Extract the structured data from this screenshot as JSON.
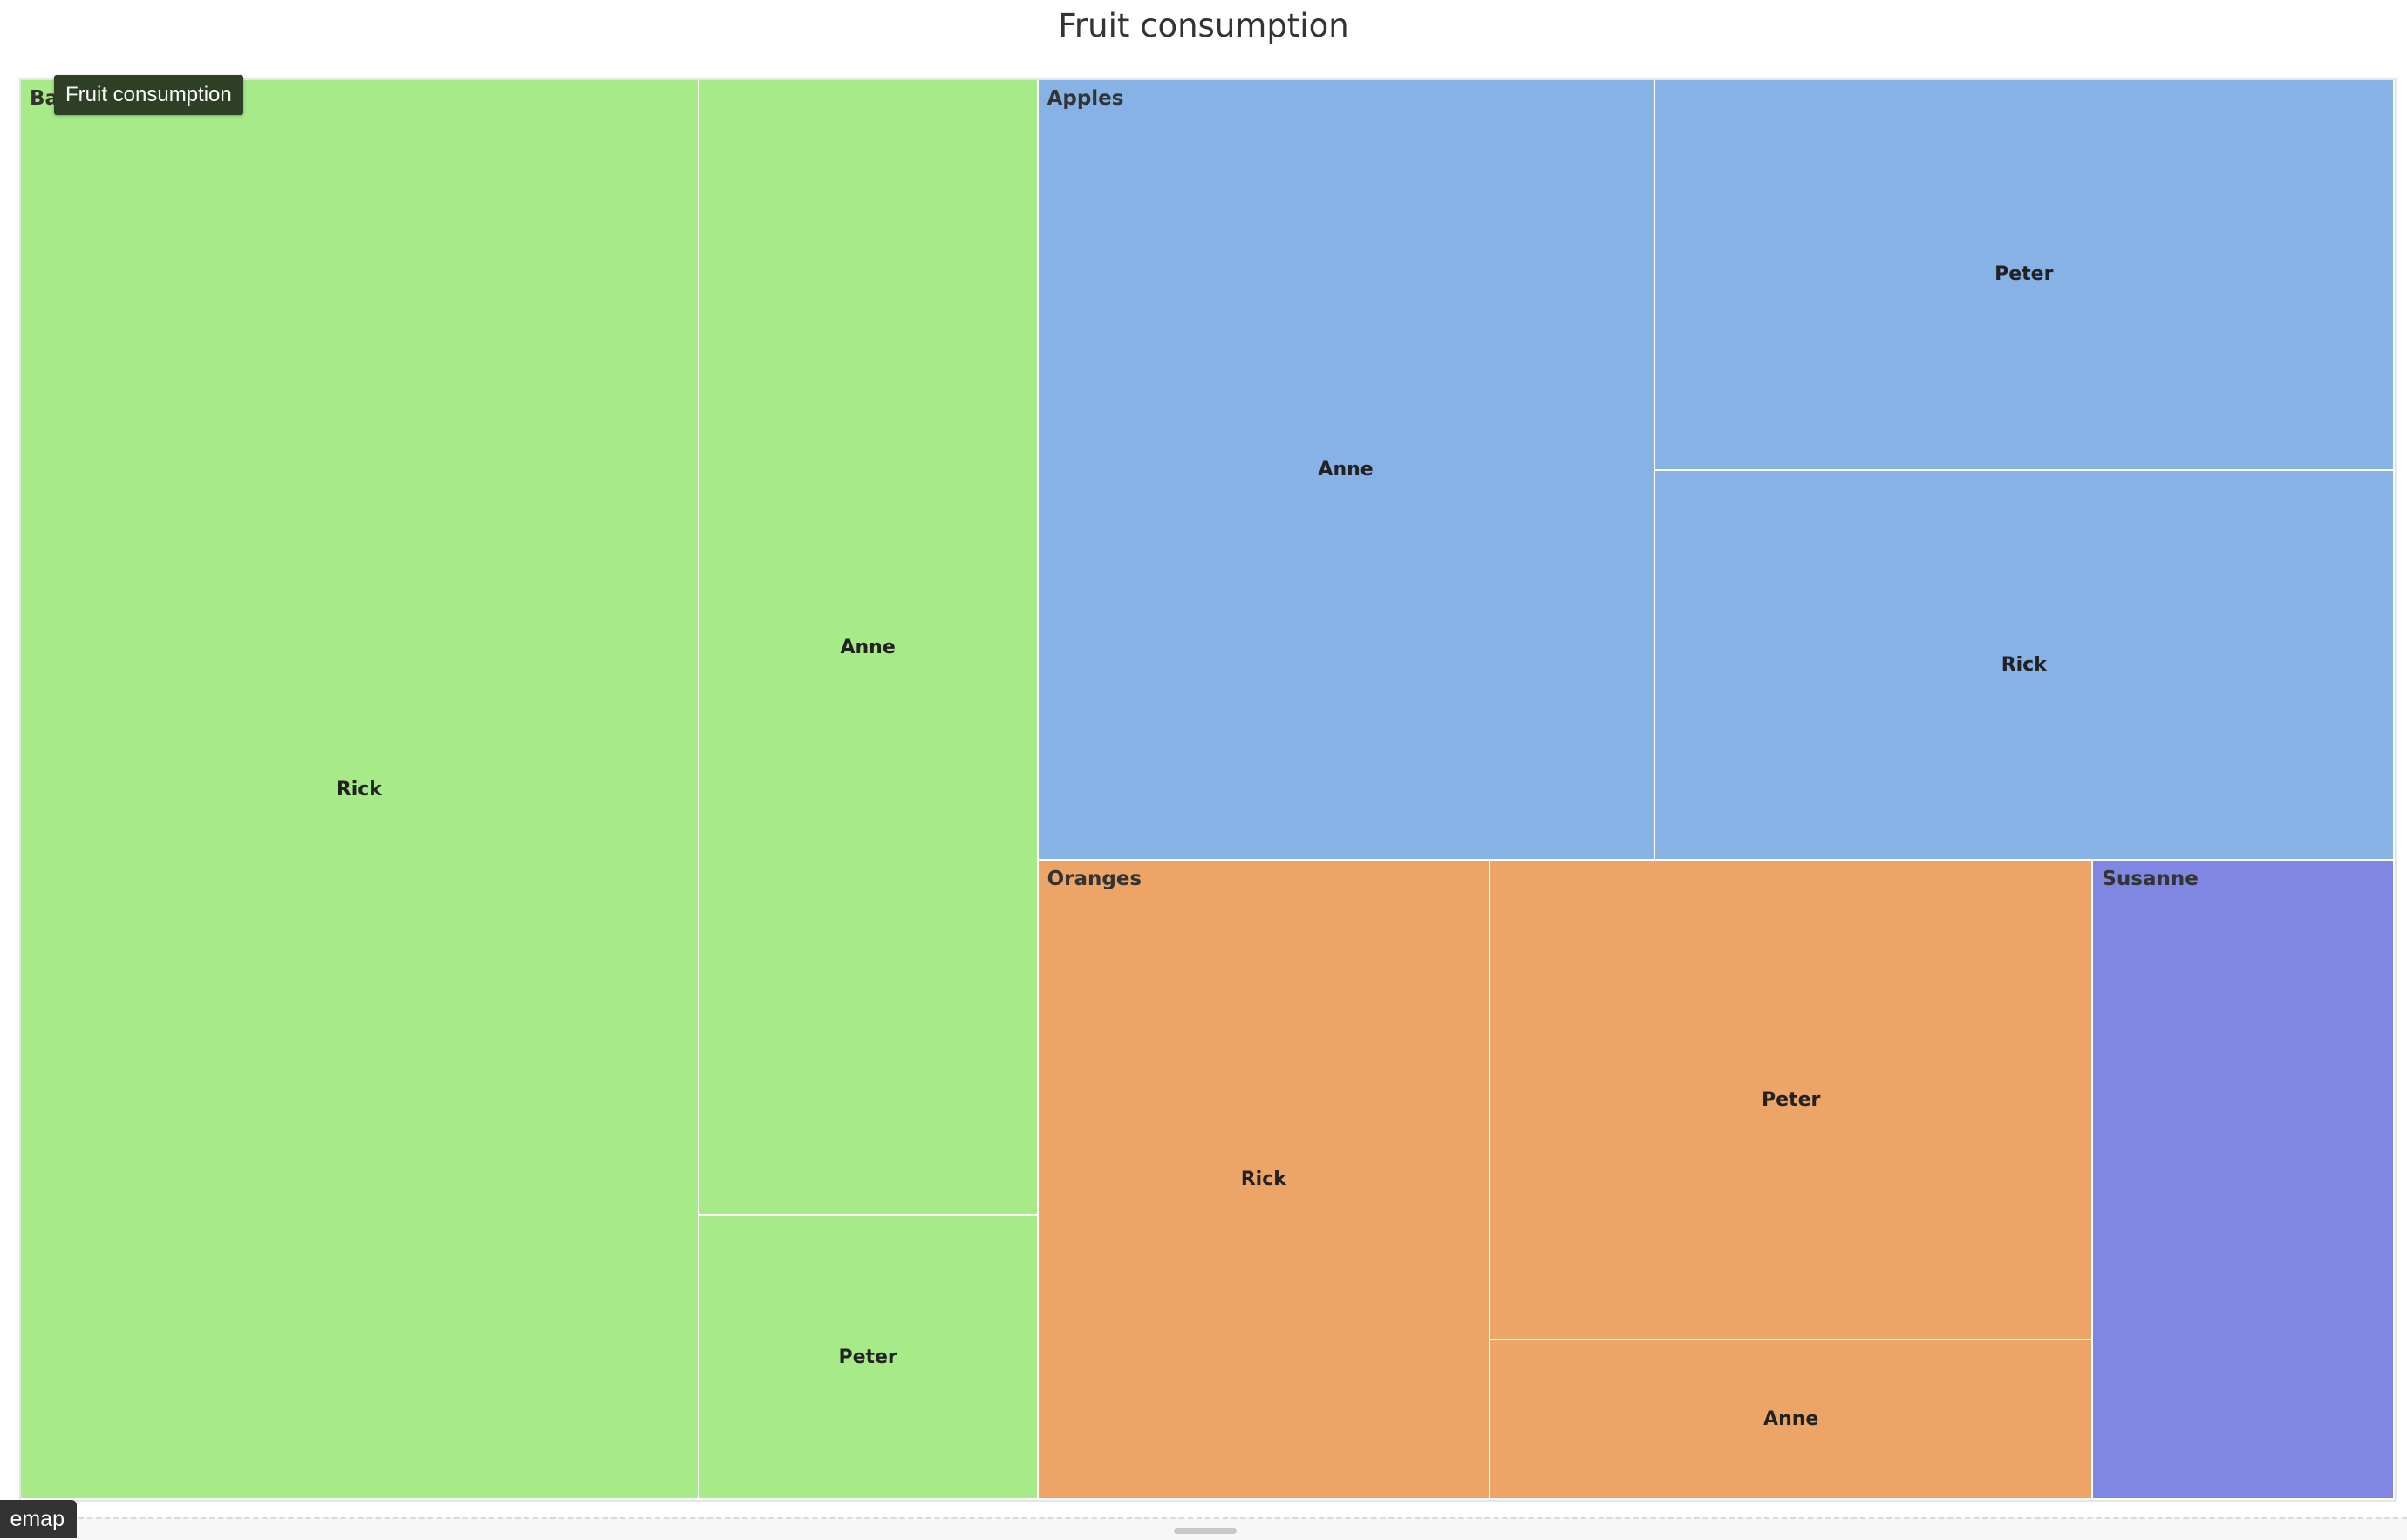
{
  "chart_data": {
    "type": "treemap",
    "title": "Fruit consumption",
    "groups": [
      {
        "name": "Bananas",
        "color": "#a7eb88",
        "children": [
          {
            "name": "Rick",
            "value": 10
          },
          {
            "name": "Anne",
            "value": 4
          },
          {
            "name": "Peter",
            "value": 1
          }
        ]
      },
      {
        "name": "Apples",
        "color": "#86b2e5",
        "children": [
          {
            "name": "Anne",
            "value": 5
          },
          {
            "name": "Peter",
            "value": 3
          },
          {
            "name": "Rick",
            "value": 3
          }
        ]
      },
      {
        "name": "Oranges",
        "color": "#eca567",
        "children": [
          {
            "name": "Rick",
            "value": 3
          },
          {
            "name": "Peter",
            "value": 3
          },
          {
            "name": "Anne",
            "value": 1
          }
        ]
      },
      {
        "name": "Susanne",
        "color": "#8087e3",
        "children": [
          {
            "name": "",
            "value": 2
          }
        ]
      }
    ]
  },
  "tooltip": {
    "text": "Fruit consumption"
  },
  "footer": {
    "tag_text": "emap"
  }
}
